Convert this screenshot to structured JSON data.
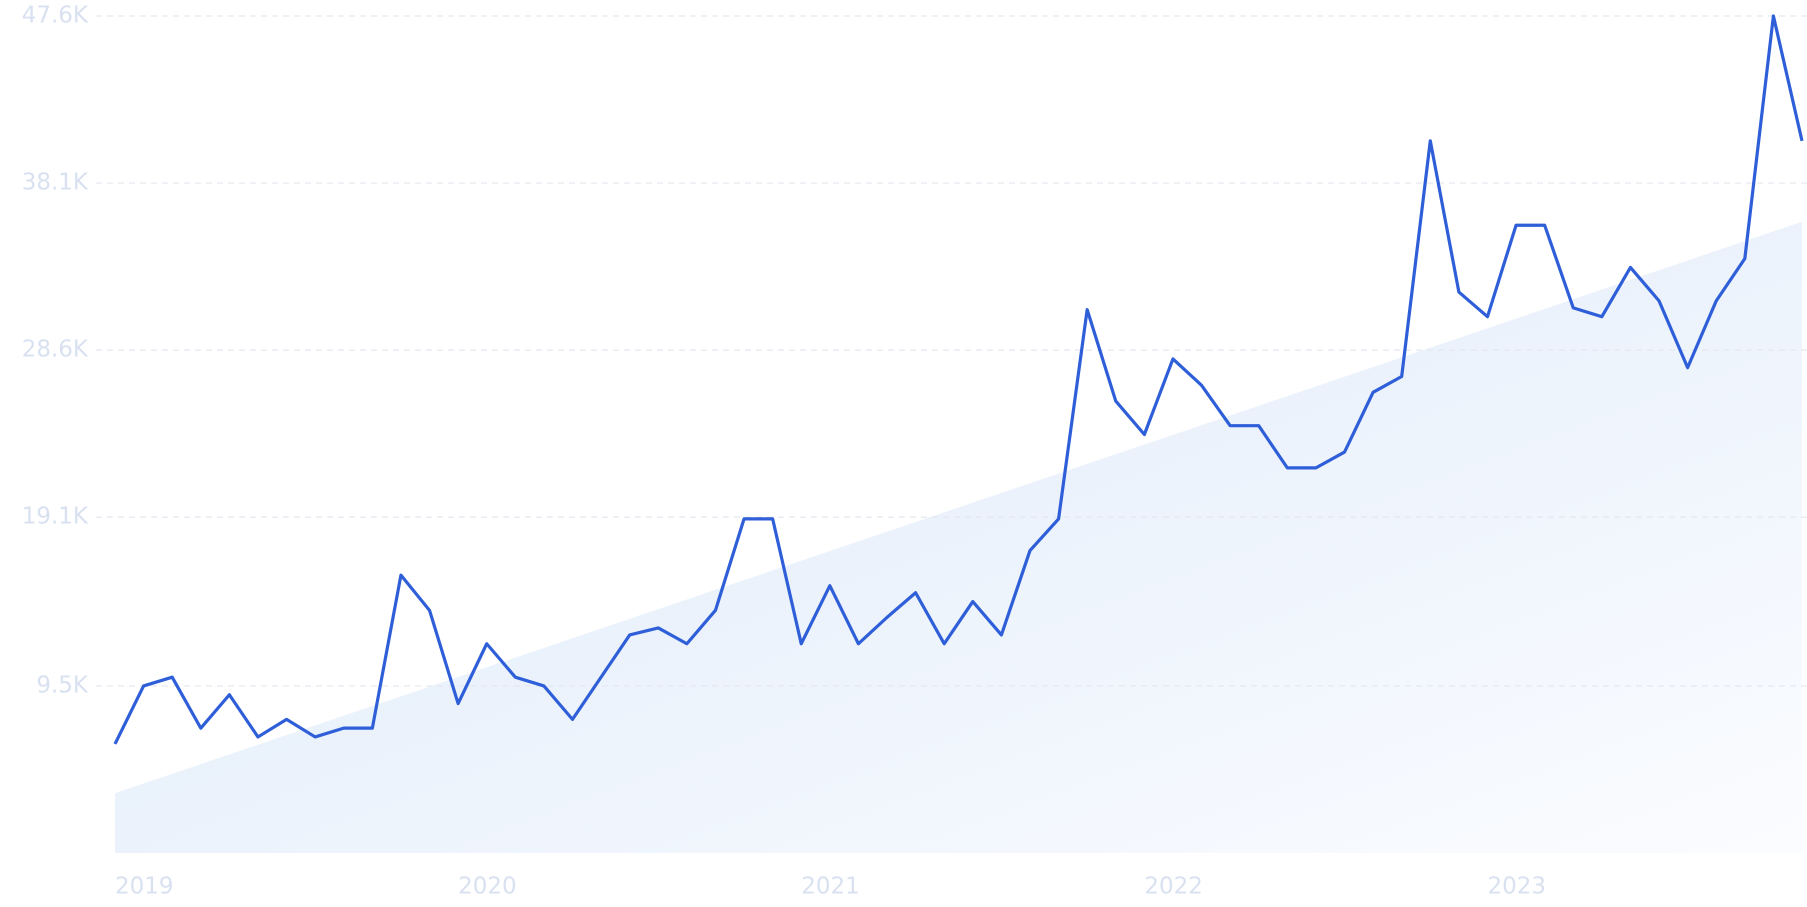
{
  "chart_data": {
    "type": "line",
    "categories": [
      "2019",
      null,
      null,
      null,
      null,
      null,
      null,
      null,
      null,
      null,
      null,
      null,
      "2020",
      null,
      null,
      null,
      null,
      null,
      null,
      null,
      null,
      null,
      null,
      null,
      "2021",
      null,
      null,
      null,
      null,
      null,
      null,
      null,
      null,
      null,
      null,
      null,
      "2022",
      null,
      null,
      null,
      null,
      null,
      null,
      null,
      null,
      null,
      null,
      null,
      "2023",
      null,
      null,
      null,
      null,
      null,
      null,
      null,
      null,
      null,
      null,
      null
    ],
    "series": [
      {
        "color": "#2f5fd8",
        "values": [
          6.2,
          9.5,
          10.0,
          7.1,
          9.0,
          6.6,
          7.6,
          6.6,
          7.1,
          7.1,
          15.8,
          13.8,
          8.5,
          11.9,
          10.0,
          9.5,
          7.6,
          10.0,
          12.4,
          12.8,
          11.9,
          13.8,
          19.0,
          19.0,
          11.9,
          15.2,
          11.9,
          13.4,
          14.8,
          11.9,
          14.3,
          12.4,
          17.2,
          19.0,
          30.9,
          25.7,
          23.8,
          28.1,
          26.6,
          24.3,
          24.3,
          21.9,
          21.9,
          22.8,
          26.2,
          27.1,
          40.5,
          31.9,
          30.5,
          35.7,
          35.7,
          31.0,
          30.5,
          33.3,
          31.4,
          27.6,
          31.4,
          33.8,
          47.6,
          40.5
        ]
      }
    ],
    "trend": {
      "start": 3.4,
      "end": 35.9,
      "color": "#dde9f9"
    },
    "ylim": [
      0,
      47.6
    ],
    "yticks": [
      {
        "value": 9.5,
        "label": "9.5K"
      },
      {
        "value": 19.1,
        "label": "19.1K"
      },
      {
        "value": 28.6,
        "label": "28.6K"
      },
      {
        "value": 38.1,
        "label": "38.1K"
      },
      {
        "value": 47.6,
        "label": "47.6K"
      }
    ],
    "grid": true
  }
}
